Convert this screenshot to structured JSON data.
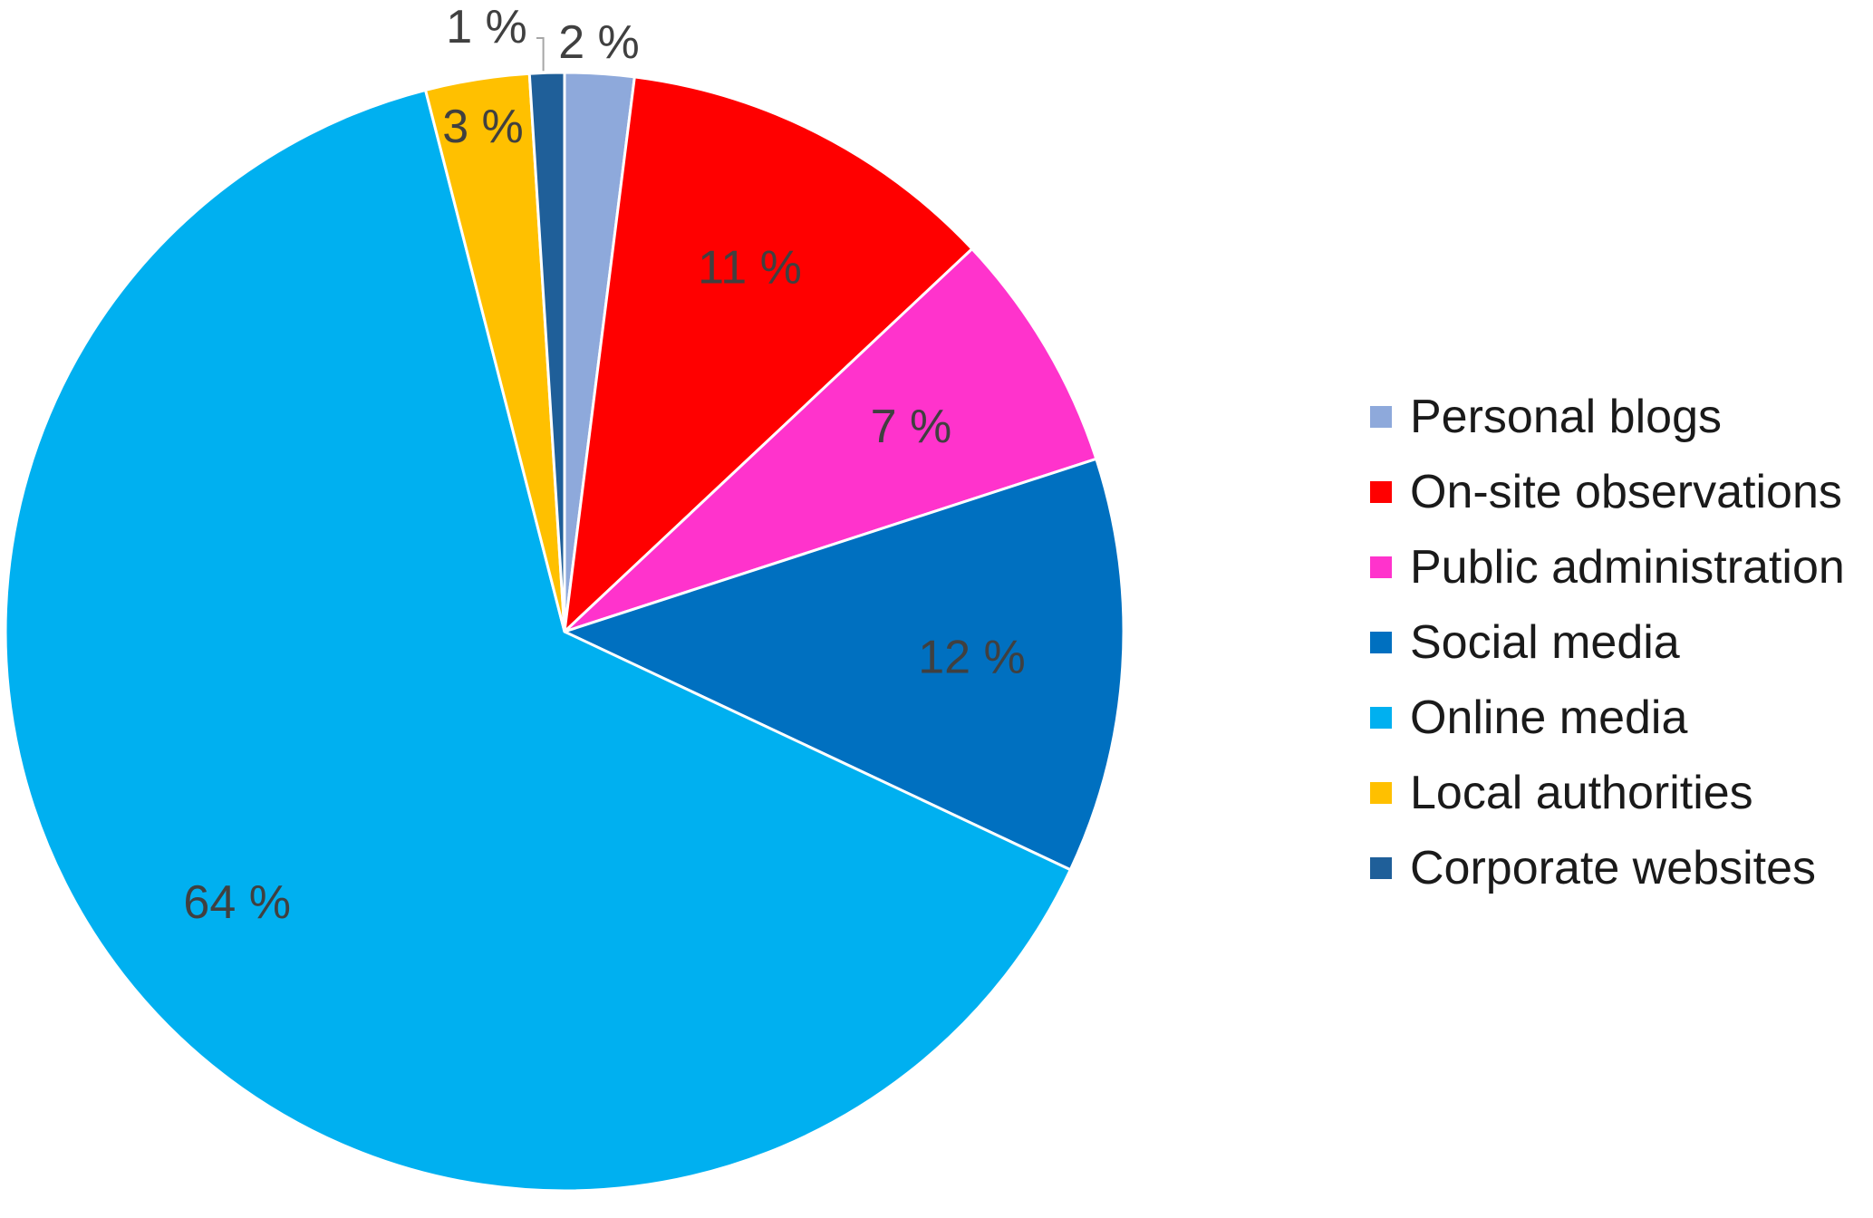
{
  "chart_data": {
    "type": "pie",
    "start_angle_deg": 0,
    "direction": "clockwise",
    "legend_position": "right",
    "slices": [
      {
        "name": "Personal blogs",
        "value": 2,
        "label": "2 %",
        "color": "#8EA9DB"
      },
      {
        "name": "On-site observations",
        "value": 11,
        "label": "11 %",
        "color": "#FF0000"
      },
      {
        "name": "Public administration",
        "value": 7,
        "label": "7 %",
        "color": "#FF33CC"
      },
      {
        "name": "Social media",
        "value": 12,
        "label": "12 %",
        "color": "#0070C0"
      },
      {
        "name": "Online media",
        "value": 64,
        "label": "64 %",
        "color": "#00B0F0"
      },
      {
        "name": "Local authorities",
        "value": 3,
        "label": "3 %",
        "color": "#FFC000"
      },
      {
        "name": "Corporate websites",
        "value": 1,
        "label": "1 %",
        "color": "#1F5F99"
      }
    ]
  }
}
